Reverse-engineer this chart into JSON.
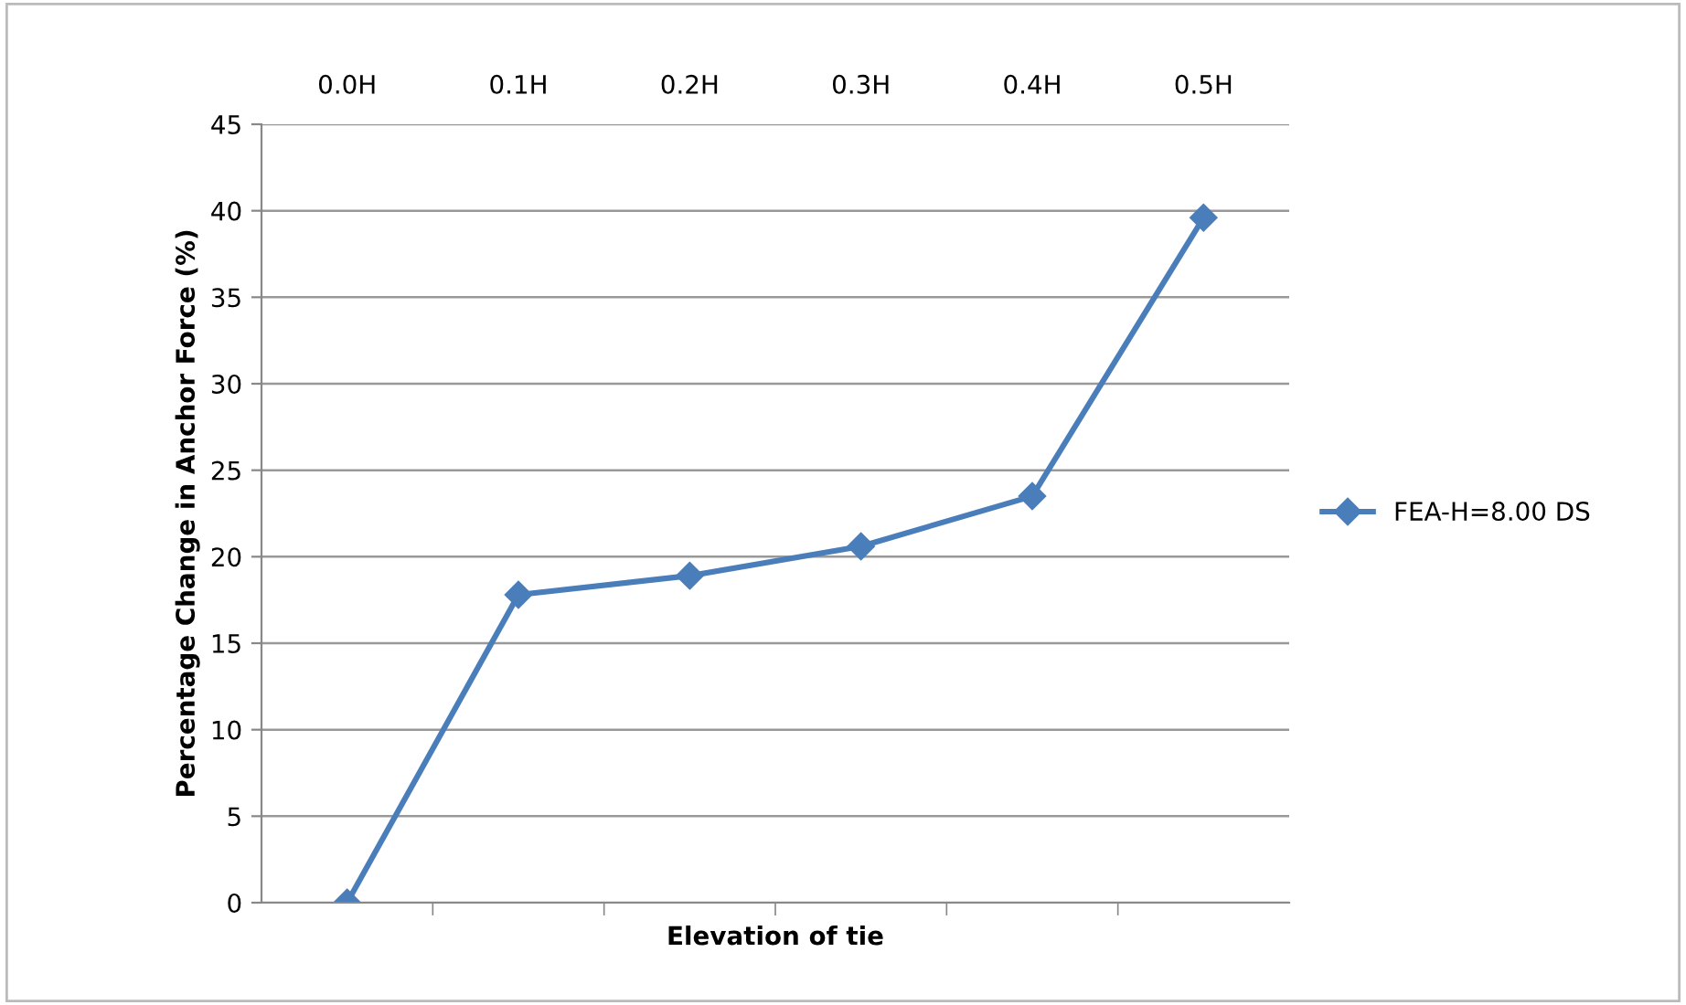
{
  "chart_data": {
    "type": "line",
    "xlabel": "Elevation of tie",
    "ylabel": "Percentage Change in Anchor Force (%)",
    "categories": [
      "0.0H",
      "0.1H",
      "0.2H",
      "0.3H",
      "0.4H",
      "0.5H"
    ],
    "series": [
      {
        "name": "FEA-H=8.00 DS",
        "color": "#4a7ebb",
        "values": [
          0,
          17.8,
          18.9,
          20.6,
          23.5,
          39.6
        ]
      }
    ],
    "ylim": [
      0,
      45
    ],
    "yticks": [
      0,
      5,
      10,
      15,
      20,
      25,
      30,
      35,
      40,
      45
    ],
    "grid": "y",
    "legend": "right",
    "marker": "diamond",
    "line_style": "solid"
  }
}
